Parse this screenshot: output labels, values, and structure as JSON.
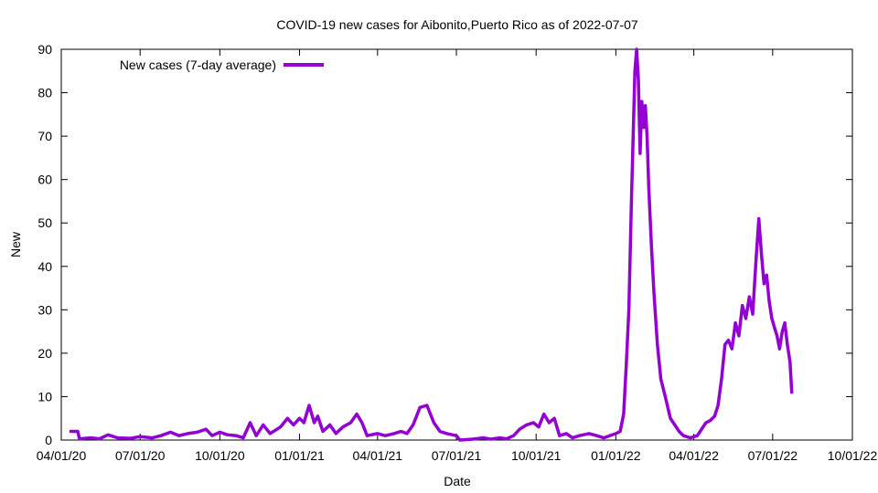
{
  "chart_data": {
    "type": "line",
    "title": "COVID-19 new cases for Aibonito,Puerto Rico as of 2022-07-07",
    "xlabel": "Date",
    "ylabel": "New",
    "xlim": [
      "2020-04-01",
      "2022-10-01"
    ],
    "ylim": [
      0,
      90
    ],
    "x_ticks": [
      "04/01/20",
      "07/01/20",
      "10/01/20",
      "01/01/21",
      "04/01/21",
      "07/01/21",
      "10/01/21",
      "01/01/22",
      "04/01/22",
      "07/01/22",
      "10/01/22"
    ],
    "y_ticks": [
      "0",
      "10",
      "20",
      "30",
      "40",
      "50",
      "60",
      "70",
      "80",
      "90"
    ],
    "legend_position": "top-left",
    "grid": false,
    "series": [
      {
        "name": "New cases (7-day average)",
        "color": "#9400d3",
        "points": [
          [
            "2020-04-12",
            2
          ],
          [
            "2020-04-20",
            2
          ],
          [
            "2020-04-22",
            0.3
          ],
          [
            "2020-05-05",
            0.5
          ],
          [
            "2020-05-15",
            0.3
          ],
          [
            "2020-05-25",
            1.2
          ],
          [
            "2020-06-05",
            0.5
          ],
          [
            "2020-06-20",
            0.4
          ],
          [
            "2020-07-01",
            0.8
          ],
          [
            "2020-07-15",
            0.5
          ],
          [
            "2020-07-25",
            1.0
          ],
          [
            "2020-08-05",
            1.8
          ],
          [
            "2020-08-15",
            1.0
          ],
          [
            "2020-08-25",
            1.5
          ],
          [
            "2020-09-05",
            1.8
          ],
          [
            "2020-09-15",
            2.5
          ],
          [
            "2020-09-22",
            1.0
          ],
          [
            "2020-10-01",
            1.8
          ],
          [
            "2020-10-10",
            1.2
          ],
          [
            "2020-10-20",
            1.0
          ],
          [
            "2020-10-28",
            0.5
          ],
          [
            "2020-11-05",
            4.0
          ],
          [
            "2020-11-12",
            1.0
          ],
          [
            "2020-11-20",
            3.5
          ],
          [
            "2020-11-28",
            1.5
          ],
          [
            "2020-12-10",
            3.0
          ],
          [
            "2020-12-18",
            5.0
          ],
          [
            "2020-12-25",
            3.5
          ],
          [
            "2021-01-01",
            5.0
          ],
          [
            "2021-01-06",
            4.0
          ],
          [
            "2021-01-12",
            8.0
          ],
          [
            "2021-01-18",
            4.0
          ],
          [
            "2021-01-22",
            5.5
          ],
          [
            "2021-01-28",
            2.0
          ],
          [
            "2021-02-05",
            3.5
          ],
          [
            "2021-02-12",
            1.5
          ],
          [
            "2021-02-20",
            3.0
          ],
          [
            "2021-03-01",
            4.0
          ],
          [
            "2021-03-08",
            6.0
          ],
          [
            "2021-03-14",
            4.0
          ],
          [
            "2021-03-20",
            1.0
          ],
          [
            "2021-04-01",
            1.5
          ],
          [
            "2021-04-10",
            1.0
          ],
          [
            "2021-04-20",
            1.5
          ],
          [
            "2021-04-28",
            2.0
          ],
          [
            "2021-05-05",
            1.5
          ],
          [
            "2021-05-12",
            3.5
          ],
          [
            "2021-05-20",
            7.5
          ],
          [
            "2021-05-28",
            8.0
          ],
          [
            "2021-06-05",
            4.0
          ],
          [
            "2021-06-12",
            2.0
          ],
          [
            "2021-06-20",
            1.5
          ],
          [
            "2021-07-01",
            1.0
          ],
          [
            "2021-07-05",
            0.0
          ],
          [
            "2021-07-20",
            0.2
          ],
          [
            "2021-08-01",
            0.5
          ],
          [
            "2021-08-10",
            0.2
          ],
          [
            "2021-08-20",
            0.5
          ],
          [
            "2021-08-28",
            0.3
          ],
          [
            "2021-09-05",
            1.0
          ],
          [
            "2021-09-12",
            2.5
          ],
          [
            "2021-09-20",
            3.5
          ],
          [
            "2021-09-28",
            4.0
          ],
          [
            "2021-10-04",
            3.0
          ],
          [
            "2021-10-10",
            6.0
          ],
          [
            "2021-10-16",
            4.0
          ],
          [
            "2021-10-22",
            5.0
          ],
          [
            "2021-10-28",
            1.0
          ],
          [
            "2021-11-05",
            1.5
          ],
          [
            "2021-11-12",
            0.5
          ],
          [
            "2021-11-20",
            1.0
          ],
          [
            "2021-12-01",
            1.5
          ],
          [
            "2021-12-10",
            1.0
          ],
          [
            "2021-12-18",
            0.5
          ],
          [
            "2022-01-01",
            1.5
          ],
          [
            "2022-01-06",
            2.0
          ],
          [
            "2022-01-10",
            6.0
          ],
          [
            "2022-01-13",
            17.0
          ],
          [
            "2022-01-16",
            30.0
          ],
          [
            "2022-01-19",
            55.0
          ],
          [
            "2022-01-21",
            70.0
          ],
          [
            "2022-01-23",
            85.0
          ],
          [
            "2022-01-25",
            90.0
          ],
          [
            "2022-01-27",
            83.0
          ],
          [
            "2022-01-29",
            66.0
          ],
          [
            "2022-01-31",
            78.0
          ],
          [
            "2022-02-02",
            72.0
          ],
          [
            "2022-02-04",
            77.0
          ],
          [
            "2022-02-06",
            70.0
          ],
          [
            "2022-02-08",
            58.0
          ],
          [
            "2022-02-11",
            45.0
          ],
          [
            "2022-02-14",
            34.0
          ],
          [
            "2022-02-18",
            22.0
          ],
          [
            "2022-02-22",
            14.0
          ],
          [
            "2022-02-27",
            10.0
          ],
          [
            "2022-03-05",
            5.0
          ],
          [
            "2022-03-10",
            3.5
          ],
          [
            "2022-03-15",
            2.0
          ],
          [
            "2022-03-20",
            1.0
          ],
          [
            "2022-03-28",
            0.5
          ],
          [
            "2022-04-05",
            1.0
          ],
          [
            "2022-04-10",
            2.5
          ],
          [
            "2022-04-15",
            4.0
          ],
          [
            "2022-04-20",
            4.5
          ],
          [
            "2022-04-25",
            5.5
          ],
          [
            "2022-04-29",
            8.0
          ],
          [
            "2022-05-03",
            14.0
          ],
          [
            "2022-05-07",
            22.0
          ],
          [
            "2022-05-11",
            23.0
          ],
          [
            "2022-05-15",
            21.0
          ],
          [
            "2022-05-19",
            27.0
          ],
          [
            "2022-05-23",
            24.0
          ],
          [
            "2022-05-27",
            31.0
          ],
          [
            "2022-05-31",
            28.0
          ],
          [
            "2022-06-04",
            33.0
          ],
          [
            "2022-06-08",
            29.0
          ],
          [
            "2022-06-12",
            42.0
          ],
          [
            "2022-06-15",
            51.0
          ],
          [
            "2022-06-18",
            43.0
          ],
          [
            "2022-06-21",
            36.0
          ],
          [
            "2022-06-24",
            38.0
          ],
          [
            "2022-06-27",
            32.0
          ],
          [
            "2022-06-30",
            28.0
          ],
          [
            "2022-07-03",
            26.0
          ],
          [
            "2022-07-06",
            24.0
          ],
          [
            "2022-07-09",
            21.0
          ],
          [
            "2022-07-12",
            25.0
          ],
          [
            "2022-07-15",
            27.0
          ],
          [
            "2022-07-18",
            22.0
          ],
          [
            "2022-07-21",
            18.0
          ],
          [
            "2022-07-23",
            11.0
          ]
        ]
      }
    ]
  }
}
